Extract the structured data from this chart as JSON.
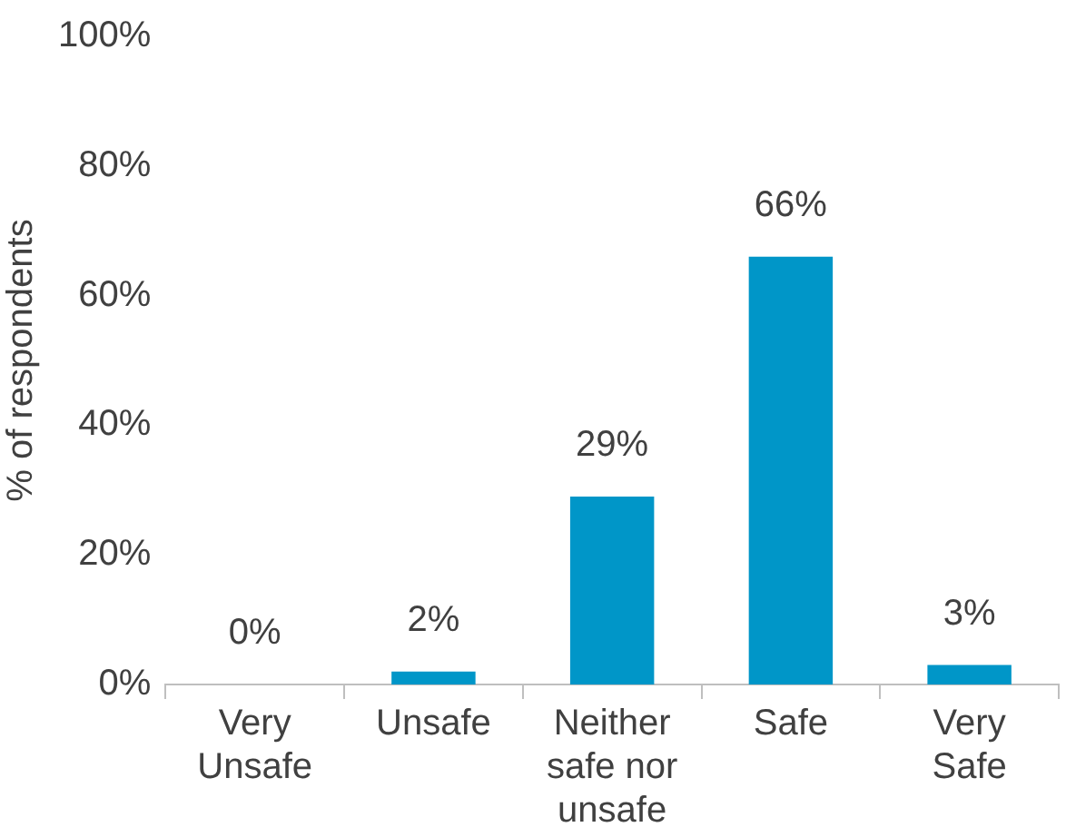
{
  "chart_data": {
    "type": "bar",
    "ylabel": "% of respondents",
    "categories": [
      "Very Unsafe",
      "Unsafe",
      "Neither safe nor unsafe",
      "Safe",
      "Very Safe"
    ],
    "values": [
      0,
      2,
      29,
      66,
      3
    ],
    "color": "#0096c8",
    "value_labels": [
      "0%",
      "2%",
      "29%",
      "66%",
      "3%"
    ],
    "ylim": [
      0,
      100
    ],
    "yticks": [
      {
        "value": 0,
        "label": "0%"
      },
      {
        "value": 20,
        "label": "20%"
      },
      {
        "value": 40,
        "label": "40%"
      },
      {
        "value": 60,
        "label": "60%"
      },
      {
        "value": 80,
        "label": "80%"
      },
      {
        "value": 100,
        "label": "100%"
      }
    ]
  }
}
